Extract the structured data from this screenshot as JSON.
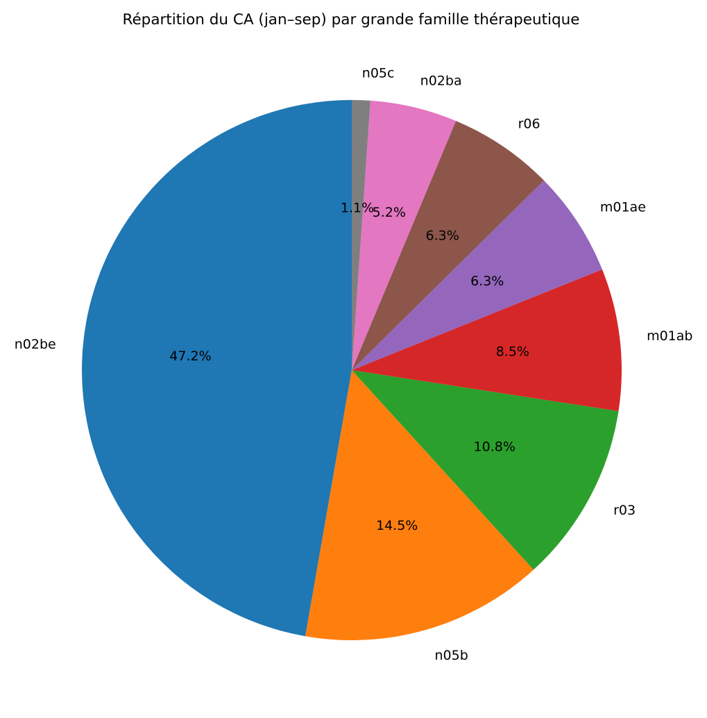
{
  "chart_data": {
    "type": "pie",
    "title": "Répartition du CA (jan–sep) par grande famille thérapeutique",
    "start_angle_deg": 90,
    "direction": "counterclockwise",
    "slices": [
      {
        "label": "n02be",
        "value": 47.2,
        "pct_label": "47.2%",
        "color": "#1f77b4"
      },
      {
        "label": "n05b",
        "value": 14.5,
        "pct_label": "14.5%",
        "color": "#ff7f0e"
      },
      {
        "label": "r03",
        "value": 10.8,
        "pct_label": "10.8%",
        "color": "#2ca02c"
      },
      {
        "label": "m01ab",
        "value": 8.5,
        "pct_label": "8.5%",
        "color": "#d62728"
      },
      {
        "label": "m01ae",
        "value": 6.3,
        "pct_label": "6.3%",
        "color": "#9467bd"
      },
      {
        "label": "r06",
        "value": 6.3,
        "pct_label": "6.3%",
        "color": "#8c564b"
      },
      {
        "label": "n02ba",
        "value": 5.2,
        "pct_label": "5.2%",
        "color": "#e377c2"
      },
      {
        "label": "n05c",
        "value": 1.1,
        "pct_label": "1.1%",
        "color": "#7f7f7f"
      }
    ]
  }
}
